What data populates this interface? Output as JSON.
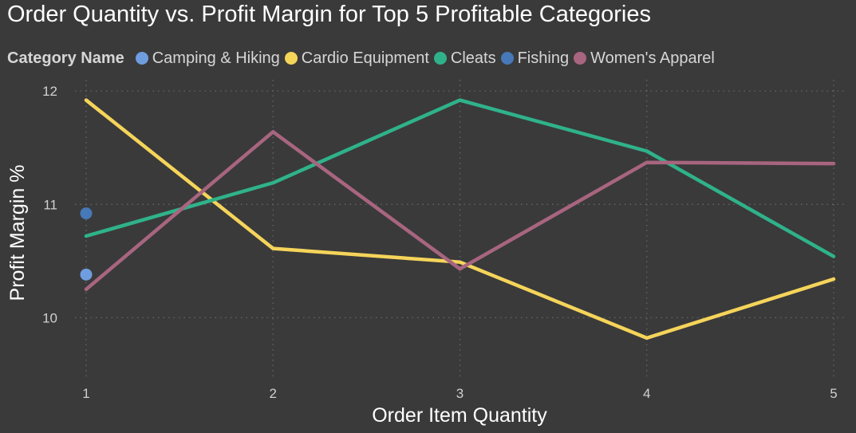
{
  "chart_data": {
    "type": "line",
    "title": "Order Quantity vs. Profit Margin for Top 5 Profitable Categories",
    "legend_title": "Category Name",
    "legend_position": "top-left",
    "xlabel": "Order Item Quantity",
    "ylabel": "Profit Margin %",
    "x": [
      1,
      2,
      3,
      4,
      5
    ],
    "x_ticks": [
      "1",
      "2",
      "3",
      "4",
      "5"
    ],
    "y_ticks": [
      "10",
      "11",
      "12"
    ],
    "y_tick_values": [
      10,
      11,
      12
    ],
    "xlim": [
      1,
      5
    ],
    "ylim": [
      9.46,
      12.1
    ],
    "grid": true,
    "series": [
      {
        "name": "Camping & Hiking",
        "color": "#6f9de0",
        "x": [
          1
        ],
        "values": [
          10.38
        ]
      },
      {
        "name": "Cardio Equipment",
        "color": "#f5d45a",
        "x": [
          1,
          2,
          3,
          4,
          5
        ],
        "values": [
          11.92,
          10.61,
          10.49,
          9.82,
          10.34
        ]
      },
      {
        "name": "Cleats",
        "color": "#2fb28a",
        "x": [
          1,
          2,
          3,
          4,
          5
        ],
        "values": [
          10.72,
          11.19,
          11.92,
          11.47,
          10.54
        ]
      },
      {
        "name": "Fishing",
        "color": "#4778b8",
        "x": [
          1
        ],
        "values": [
          10.92
        ]
      },
      {
        "name": "Women's Apparel",
        "color": "#a8657f",
        "x": [
          1,
          2,
          3,
          4,
          5
        ],
        "values": [
          10.25,
          11.64,
          10.43,
          11.37,
          11.36
        ]
      }
    ]
  },
  "colors": {
    "background": "#3a3a3a",
    "gridline": "#6a6a6a"
  }
}
